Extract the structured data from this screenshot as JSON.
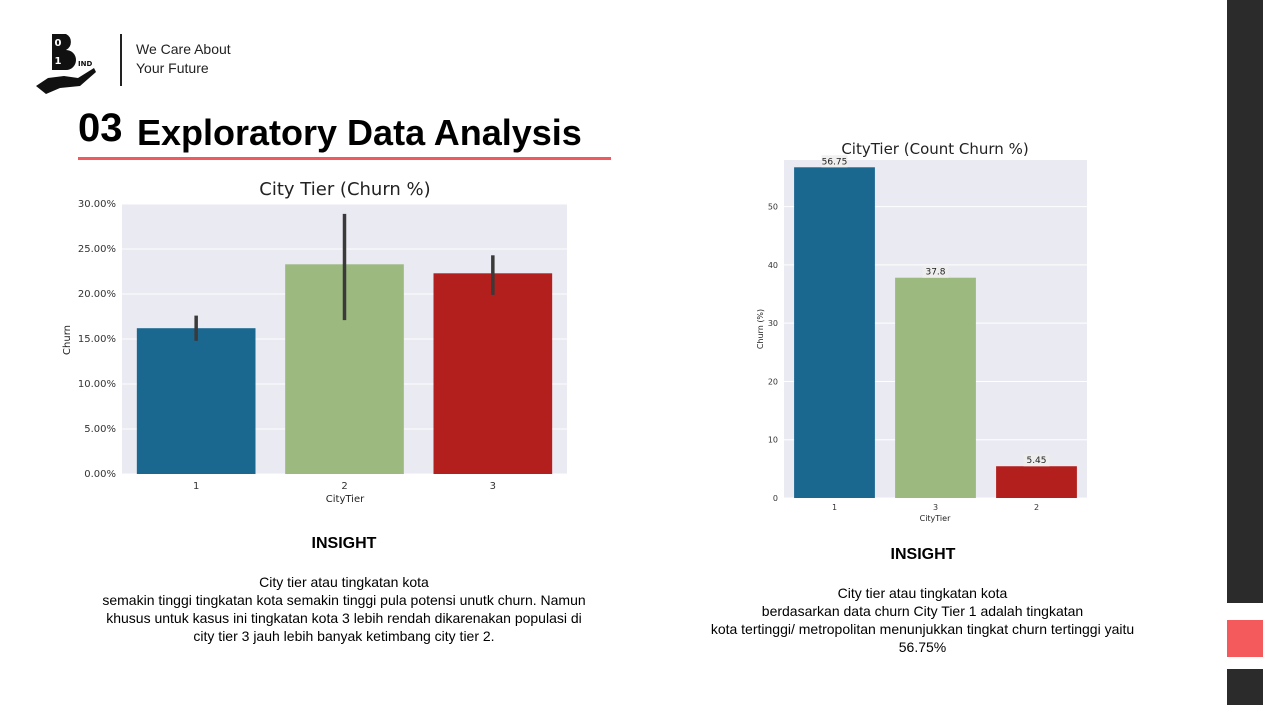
{
  "header": {
    "logo_letter": "B",
    "logo_digits": [
      "0",
      "1"
    ],
    "logo_suffix": "IND",
    "tagline_line1": "We Care About",
    "tagline_line2": "Your Future",
    "section_number": "03",
    "title": "Exploratory Data Analysis"
  },
  "colors": {
    "accent": "#f05a5f",
    "blue": "#1a6890",
    "green": "#9cba7f",
    "red": "#b31f1c",
    "plot_bg": "#eaeaf2"
  },
  "chart_data": [
    {
      "type": "bar",
      "title": "City Tier (Churn %)",
      "xlabel": "CityTier",
      "ylabel": "Churn",
      "categories": [
        "1",
        "2",
        "3"
      ],
      "values": [
        16.2,
        23.3,
        22.3
      ],
      "error_low": [
        14.8,
        17.1,
        19.9
      ],
      "error_high": [
        17.6,
        28.9,
        24.3
      ],
      "ylim": [
        0,
        30
      ],
      "yticks": [
        0,
        5,
        10,
        15,
        20,
        25,
        30
      ],
      "ytick_labels": [
        "0.00%",
        "5.00%",
        "10.00%",
        "15.00%",
        "20.00%",
        "25.00%",
        "30.00%"
      ],
      "bar_colors": [
        "#1a6890",
        "#9cba7f",
        "#b31f1c"
      ],
      "grid": true
    },
    {
      "type": "bar",
      "title": "CityTier (Count Churn %)",
      "xlabel": "CityTier",
      "ylabel": "Churn (%)",
      "categories": [
        "1",
        "3",
        "2"
      ],
      "values": [
        56.75,
        37.8,
        5.45
      ],
      "data_labels": [
        "56.75",
        "37.8",
        "5.45"
      ],
      "ylim": [
        0,
        58
      ],
      "yticks": [
        0,
        10,
        20,
        30,
        40,
        50
      ],
      "ytick_labels": [
        "0",
        "10",
        "20",
        "30",
        "40",
        "50"
      ],
      "bar_colors": [
        "#1a6890",
        "#9cba7f",
        "#b31f1c"
      ],
      "grid": true
    }
  ],
  "insight_left": {
    "heading": "INSIGHT",
    "line1": "City tier atau tingkatan kota",
    "line2": "semakin tinggi tingkatan kota semakin tinggi pula potensi unutk churn.  Namun",
    "line3": "khusus  untuk  kasus  ini tingkatan kota 3 lebih rendah dikarenakan populasi di",
    "line4": "city tier 3 jauh  lebih banyak ketimbang city tier 2."
  },
  "insight_right": {
    "heading": "INSIGHT",
    "line1": "City tier atau tingkatan kota",
    "line2": "berdasarkan data churn  City Tier 1 adalah tingkatan",
    "line3": "kota tertinggi/ metropolitan menunjukkan  tingkat churn tertinggi yaitu",
    "line4": "56.75%"
  }
}
